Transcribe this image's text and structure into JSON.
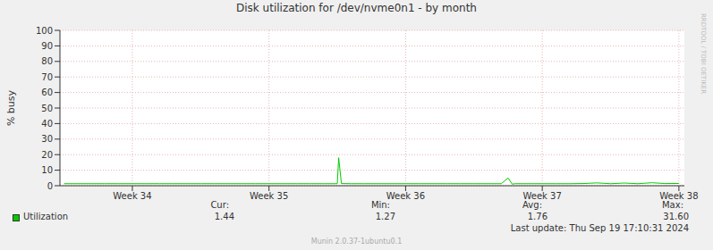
{
  "chart_data": {
    "type": "line",
    "title": "Disk utilization for /dev/nvme0n1 - by month",
    "y_label": "% busy",
    "x": [
      34.0,
      34.1,
      34.2,
      34.3,
      34.4,
      34.5,
      34.6,
      34.7,
      34.8,
      34.9,
      35.0,
      35.1,
      35.2,
      35.3,
      35.4,
      35.5,
      35.6,
      35.7,
      35.8,
      35.9,
      36.0,
      36.01,
      36.03,
      36.1,
      36.2,
      36.3,
      36.4,
      36.5,
      36.6,
      36.7,
      36.8,
      36.9,
      37.0,
      37.1,
      37.2,
      37.25,
      37.28,
      37.3,
      37.4,
      37.5,
      37.6,
      37.7,
      37.8,
      37.9,
      38.0,
      38.1,
      38.2,
      38.3,
      38.4,
      38.5
    ],
    "series": [
      {
        "name": "Utilization",
        "color": "#00cc00",
        "values": [
          1.3,
          1.3,
          1.3,
          1.3,
          1.3,
          1.3,
          1.3,
          1.3,
          1.3,
          1.3,
          1.3,
          1.3,
          1.3,
          1.3,
          1.3,
          1.3,
          1.3,
          1.3,
          1.3,
          1.3,
          1.3,
          18,
          1.4,
          1.3,
          1.3,
          1.3,
          1.3,
          1.3,
          1.3,
          1.3,
          1.3,
          1.3,
          1.3,
          1.3,
          1.3,
          5,
          1.0,
          1.3,
          1.3,
          1.3,
          1.3,
          1.3,
          1.4,
          1.8,
          1.3,
          1.7,
          1.3,
          1.9,
          1.4,
          1.44
        ]
      }
    ],
    "xlim": [
      33.97,
      38.54
    ],
    "xticks": [
      {
        "value": 34.5,
        "label": "Week 34"
      },
      {
        "value": 35.5,
        "label": "Week 35"
      },
      {
        "value": 36.5,
        "label": "Week 36"
      },
      {
        "value": 37.5,
        "label": "Week 37"
      },
      {
        "value": 38.5,
        "label": "Week 38"
      }
    ],
    "ylim": [
      0,
      100
    ],
    "yticks": [
      0,
      10,
      20,
      30,
      40,
      50,
      60,
      70,
      80,
      90,
      100
    ],
    "grid": true,
    "stats": [
      {
        "label": "Cur:",
        "value": "1.44"
      },
      {
        "label": "Min:",
        "value": "1.27"
      },
      {
        "label": "Avg:",
        "value": "1.76"
      },
      {
        "label": "Max:",
        "value": "31.60"
      }
    ],
    "last_update": "Last update: Thu Sep 19 17:10:31 2024",
    "footer": "Munin 2.0.37-1ubuntu0.1",
    "watermark": "RRDTOOL / TOBI OETIKER"
  }
}
